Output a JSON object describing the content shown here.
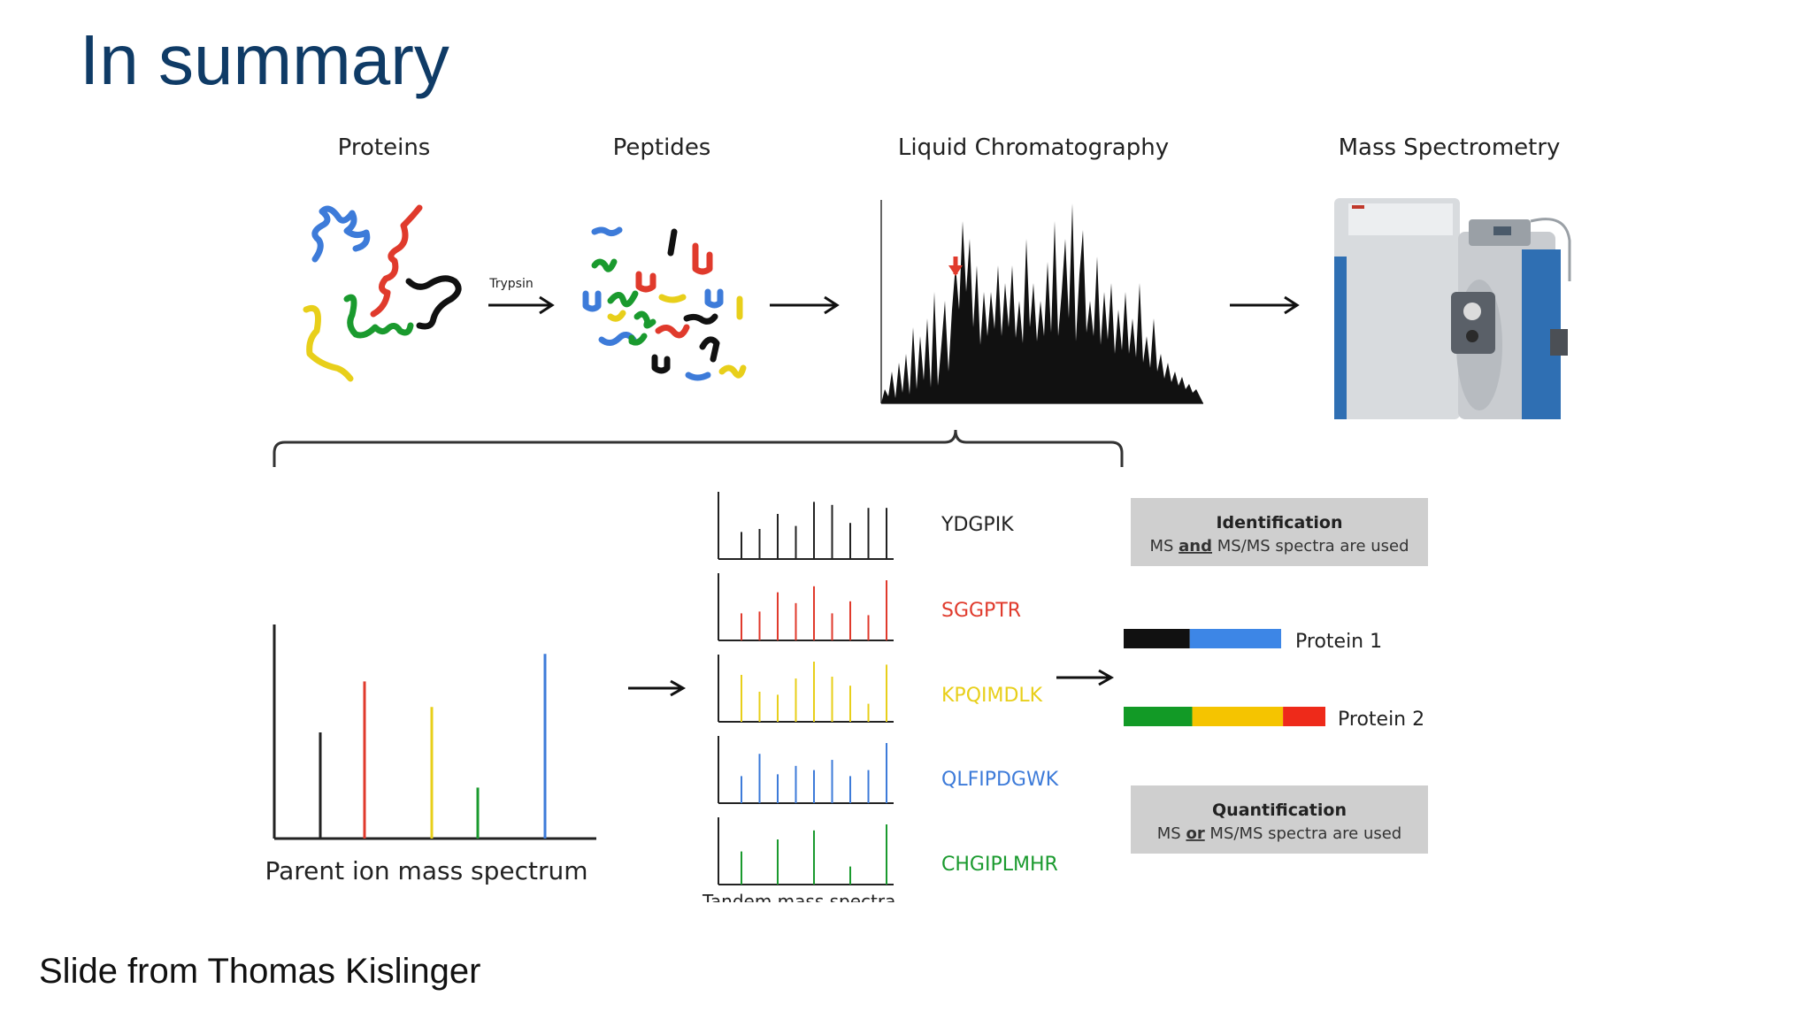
{
  "slide": {
    "title": "In summary",
    "credit": "Slide from Thomas Kislinger"
  },
  "pipeline": {
    "stages": [
      {
        "label": "Proteins",
        "icon": "proteins-illustration"
      },
      {
        "label": "Peptides",
        "icon": "peptides-illustration"
      },
      {
        "label": "Liquid Chromatography",
        "icon": "chromatogram-image"
      },
      {
        "label": "Mass Spectrometry",
        "icon": "mass-spectrometer-image"
      }
    ],
    "enzyme_label": "Trypsin"
  },
  "parent_spectrum": {
    "label": "Parent ion mass spectrum",
    "peaks": [
      {
        "color": "#222222",
        "height": 0.5
      },
      {
        "color": "#e03a2c",
        "height": 0.74
      },
      {
        "color": "#e8cf1a",
        "height": 0.62
      },
      {
        "color": "#1a9a2e",
        "height": 0.24
      },
      {
        "color": "#3d7bd9",
        "height": 0.87
      }
    ]
  },
  "tandem": {
    "label": "Tandem mass spectra",
    "spectra": [
      {
        "peptide": "YDGPIK",
        "color": "#222222",
        "peaks": [
          0.45,
          0.5,
          0.75,
          0.55,
          0.95,
          0.9,
          0.6,
          0.85,
          0.85
        ]
      },
      {
        "peptide": "SGGPTR",
        "color": "#e03a2c",
        "peaks": [
          0.45,
          0.48,
          0.8,
          0.62,
          0.9,
          0.45,
          0.65,
          0.42,
          1.0
        ]
      },
      {
        "peptide": "KPQIMDLK",
        "color": "#e8cf1a",
        "peaks": [
          0.78,
          0.5,
          0.45,
          0.72,
          1.0,
          0.75,
          0.6,
          0.3,
          0.95
        ]
      },
      {
        "peptide": "QLFIPDGWK",
        "color": "#3d7bd9",
        "peaks": [
          0.45,
          0.82,
          0.48,
          0.62,
          0.55,
          0.72,
          0.45,
          0.55,
          1.0
        ]
      },
      {
        "peptide": "CHGIPLMHR",
        "color": "#1a9a2e",
        "peaks": [
          0.55,
          0.75,
          0.9,
          0.3,
          1.0
        ]
      }
    ]
  },
  "identification": {
    "heading": "Identification",
    "pre": "MS ",
    "emph": "and",
    "post": " MS/MS spectra are used"
  },
  "quantification": {
    "heading": "Quantification",
    "pre": "MS ",
    "emph": "or",
    "post": " MS/MS spectra are used"
  },
  "proteins": [
    {
      "label": "Protein 1",
      "segments": [
        {
          "color": "#111111",
          "fraction": 0.42
        },
        {
          "color": "#3d86e6",
          "fraction": 0.58
        }
      ]
    },
    {
      "label": "Protein 2",
      "segments": [
        {
          "color": "#129a26",
          "fraction": 0.34
        },
        {
          "color": "#f5c400",
          "fraction": 0.45
        },
        {
          "color": "#ee2a1a",
          "fraction": 0.21
        }
      ]
    }
  ],
  "colors": {
    "title": "#0f3b66",
    "box_fill": "#cfcfcf",
    "black": "#111111",
    "red": "#e03a2c",
    "yellow": "#f0cd00",
    "green": "#1a9a2e",
    "blue": "#3d7bd9"
  }
}
